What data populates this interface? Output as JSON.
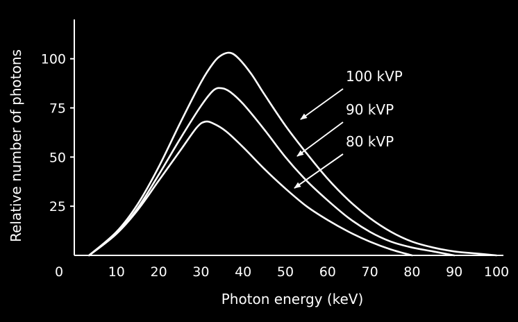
{
  "chart_data": {
    "type": "line",
    "xlabel": "Photon energy (keV)",
    "ylabel": "Relative number of photons",
    "xlim": [
      0,
      100
    ],
    "ylim": [
      0,
      120
    ],
    "x_ticks": [
      0,
      10,
      20,
      30,
      40,
      50,
      60,
      70,
      80,
      90,
      100
    ],
    "y_ticks": [
      25,
      50,
      75,
      100
    ],
    "grid": false,
    "line_color": "#ffffff",
    "background_color": "#000000",
    "series": [
      {
        "name": "100 kVP",
        "points": [
          [
            3.5,
            0
          ],
          [
            10,
            12
          ],
          [
            15,
            26
          ],
          [
            20,
            45
          ],
          [
            25,
            67
          ],
          [
            30,
            88
          ],
          [
            33,
            98
          ],
          [
            35,
            102
          ],
          [
            37,
            103
          ],
          [
            39,
            100
          ],
          [
            42,
            92
          ],
          [
            45,
            82
          ],
          [
            50,
            66
          ],
          [
            55,
            52
          ],
          [
            60,
            39
          ],
          [
            65,
            28
          ],
          [
            70,
            19
          ],
          [
            75,
            12
          ],
          [
            80,
            7
          ],
          [
            85,
            4
          ],
          [
            90,
            2
          ],
          [
            95,
            1
          ],
          [
            100,
            0
          ]
        ]
      },
      {
        "name": "90 kVP",
        "points": [
          [
            3.5,
            0
          ],
          [
            10,
            11
          ],
          [
            15,
            24
          ],
          [
            20,
            41
          ],
          [
            25,
            59
          ],
          [
            30,
            76
          ],
          [
            33,
            84
          ],
          [
            35,
            85
          ],
          [
            37,
            83
          ],
          [
            40,
            77
          ],
          [
            45,
            64
          ],
          [
            50,
            50
          ],
          [
            55,
            38
          ],
          [
            60,
            28
          ],
          [
            65,
            19
          ],
          [
            70,
            12
          ],
          [
            75,
            7
          ],
          [
            80,
            4
          ],
          [
            85,
            2
          ],
          [
            90,
            0
          ]
        ]
      },
      {
        "name": "80 kVP",
        "points": [
          [
            3.5,
            0
          ],
          [
            10,
            11
          ],
          [
            15,
            23
          ],
          [
            20,
            38
          ],
          [
            25,
            53
          ],
          [
            29,
            65
          ],
          [
            31,
            68
          ],
          [
            33,
            67
          ],
          [
            36,
            63
          ],
          [
            40,
            55
          ],
          [
            45,
            44
          ],
          [
            50,
            34
          ],
          [
            55,
            25
          ],
          [
            60,
            18
          ],
          [
            65,
            12
          ],
          [
            70,
            7
          ],
          [
            75,
            3
          ],
          [
            80,
            0
          ]
        ]
      }
    ],
    "annotations": [
      {
        "text": "100 kVP",
        "series": "100 kVP"
      },
      {
        "text": "90 kVP",
        "series": "90 kVP"
      },
      {
        "text": "80 kVP",
        "series": "80 kVP"
      }
    ]
  }
}
